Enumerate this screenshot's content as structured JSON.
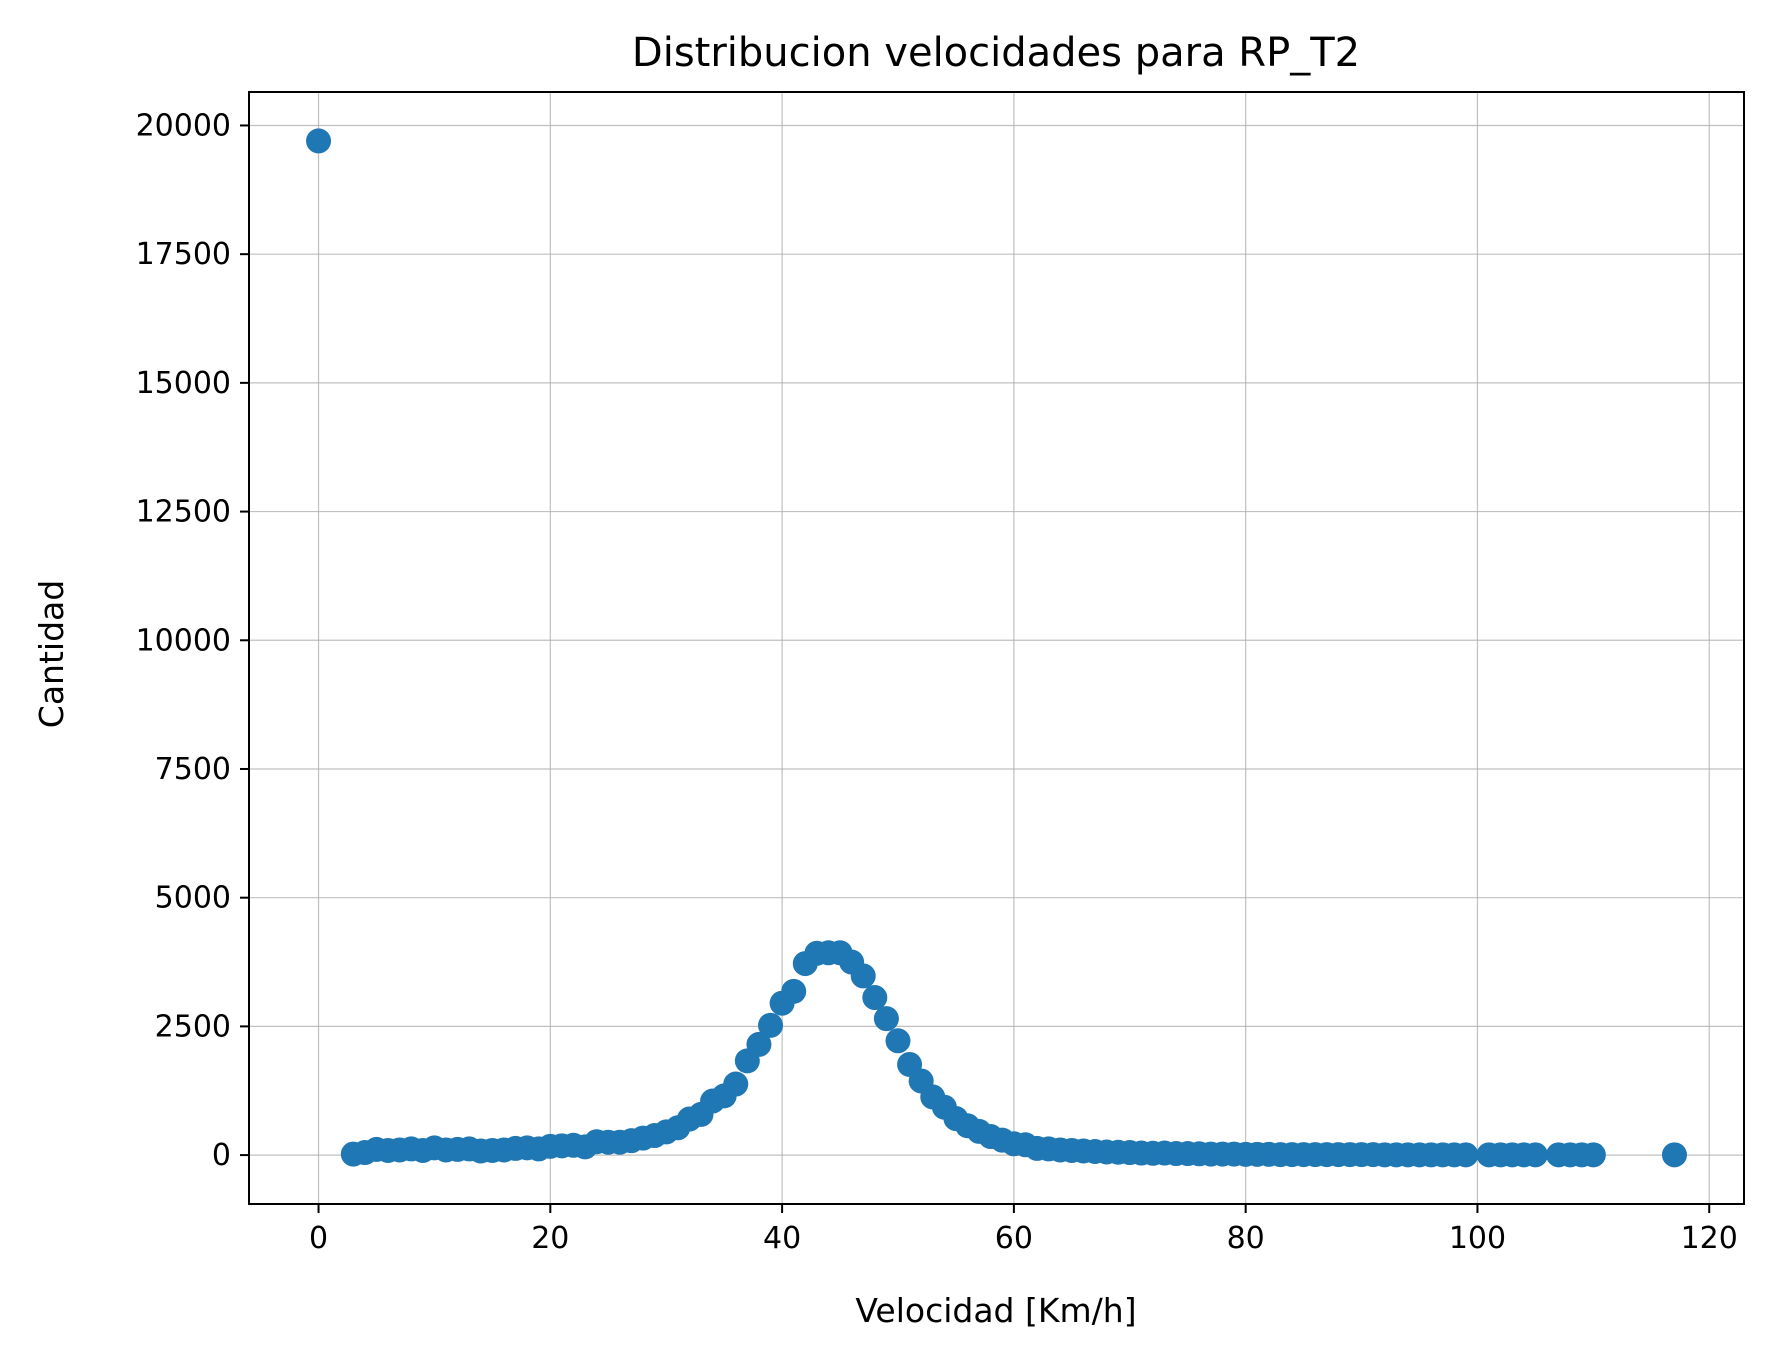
{
  "chart_data": {
    "type": "scatter",
    "title": "Distribucion velocidades para RP_T2",
    "xlabel": "Velocidad [Km/h]",
    "ylabel": "Cantidad",
    "xlim": [
      -6,
      123
    ],
    "ylim": [
      -950,
      20650
    ],
    "xticks": [
      0,
      20,
      40,
      60,
      80,
      100,
      120
    ],
    "yticks": [
      0,
      2500,
      5000,
      7500,
      10000,
      12500,
      15000,
      17500,
      20000
    ],
    "grid": true,
    "legend": "none",
    "marker_color": "#1f77b4",
    "series": [
      {
        "x": [
          0,
          3,
          4,
          5,
          6,
          7,
          8,
          9,
          10,
          11,
          12,
          13,
          14,
          15,
          16,
          17,
          18,
          19,
          20,
          21,
          22,
          23,
          24,
          25,
          26,
          27,
          28,
          29,
          30,
          31,
          32,
          33,
          34,
          35,
          36,
          37,
          38,
          39,
          40,
          41,
          42,
          43,
          44,
          45,
          46,
          47,
          48,
          49,
          50,
          51,
          52,
          53,
          54,
          55,
          56,
          57,
          58,
          59,
          60,
          61,
          62,
          63,
          64,
          65,
          66,
          67,
          68,
          69,
          70,
          71,
          72,
          73,
          74,
          75,
          76,
          77,
          78,
          79,
          80,
          81,
          82,
          83,
          84,
          85,
          86,
          87,
          88,
          89,
          90,
          91,
          92,
          93,
          94,
          95,
          96,
          97,
          98,
          99,
          101,
          102,
          103,
          104,
          105,
          107,
          108,
          109,
          110,
          117
        ],
        "y": [
          19700,
          20,
          50,
          110,
          90,
          100,
          120,
          90,
          140,
          100,
          110,
          120,
          80,
          90,
          100,
          130,
          140,
          120,
          170,
          180,
          190,
          160,
          260,
          250,
          250,
          280,
          330,
          380,
          450,
          530,
          700,
          790,
          1050,
          1150,
          1380,
          1830,
          2150,
          2520,
          2950,
          3180,
          3720,
          3920,
          3930,
          3930,
          3750,
          3480,
          3060,
          2650,
          2220,
          1760,
          1440,
          1130,
          930,
          710,
          570,
          460,
          360,
          290,
          220,
          200,
          130,
          120,
          100,
          90,
          80,
          70,
          60,
          55,
          50,
          40,
          35,
          40,
          30,
          30,
          25,
          20,
          20,
          20,
          15,
          15,
          15,
          10,
          10,
          10,
          10,
          10,
          10,
          10,
          10,
          10,
          5,
          5,
          5,
          5,
          5,
          5,
          5,
          5,
          5,
          5,
          5,
          5,
          5,
          5,
          5,
          5,
          5,
          5
        ]
      }
    ]
  }
}
